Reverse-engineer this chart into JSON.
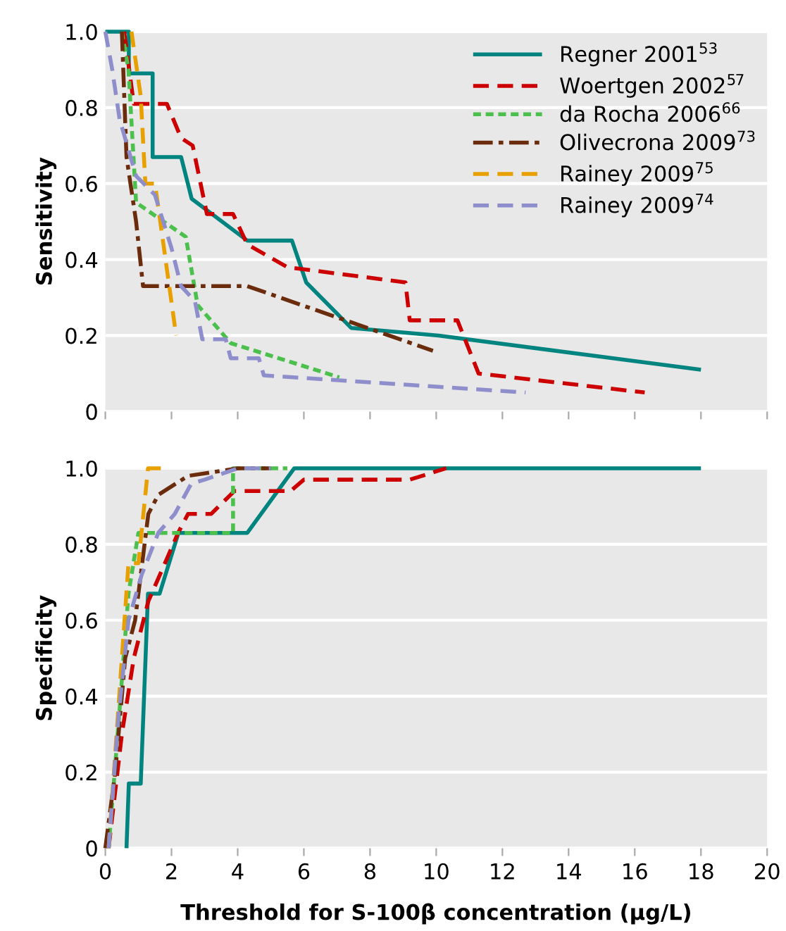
{
  "chart_data": [
    {
      "type": "line",
      "ylabel": "Sensitivity",
      "xlim": [
        0,
        20
      ],
      "ylim": [
        0,
        1.0
      ],
      "xticks": [
        {
          "value": 0,
          "label": null
        },
        {
          "value": 2,
          "label": null
        },
        {
          "value": 4,
          "label": null
        },
        {
          "value": 6,
          "label": null
        },
        {
          "value": 8,
          "label": null
        },
        {
          "value": 10,
          "label": null
        },
        {
          "value": 12,
          "label": null
        },
        {
          "value": 14,
          "label": null
        },
        {
          "value": 16,
          "label": null
        },
        {
          "value": 18,
          "label": null
        },
        {
          "value": 20,
          "label": null
        }
      ],
      "yticks": [
        0,
        0.2,
        0.4,
        0.6,
        0.8,
        {
          "value": 1.0,
          "label": "1.0"
        }
      ],
      "tick_labels": "y",
      "grid": "y",
      "legend": "top right",
      "series": [
        {
          "name": "Regner 2001$^{53}$",
          "color": "#00847f",
          "line_style": "solid",
          "x": [
            0,
            0.71,
            0.71,
            1.43,
            1.43,
            2.29,
            2.61,
            4.29,
            5.64,
            6.07,
            7.43,
            10.07,
            18.0
          ],
          "values": [
            1.0,
            1.0,
            0.89,
            0.89,
            0.67,
            0.67,
            0.56,
            0.45,
            0.45,
            0.34,
            0.22,
            0.2,
            0.11
          ]
        },
        {
          "name": "Woertgen 2002$^{57}$",
          "color": "#cc0000",
          "line_style": "dashed",
          "x": [
            0.57,
            0.86,
            1.86,
            2.29,
            2.64,
            3.07,
            3.86,
            4.29,
            5.5,
            9.07,
            9.2,
            10.64,
            11.28,
            16.3
          ],
          "values": [
            1.0,
            0.81,
            0.81,
            0.72,
            0.7,
            0.52,
            0.52,
            0.44,
            0.38,
            0.34,
            0.24,
            0.24,
            0.1,
            0.05
          ]
        },
        {
          "name": "da Rocha 2006$^{66}$",
          "color": "#4cc04c",
          "line_style": "dotted",
          "x": [
            0.5,
            0.7,
            0.93,
            2.43,
            2.79,
            3.79,
            7.07
          ],
          "values": [
            1.0,
            0.9,
            0.55,
            0.46,
            0.28,
            0.18,
            0.09
          ]
        },
        {
          "name": "Olivecrona 2009$^{73}$",
          "color": "#6b2c0d",
          "line_style": "dashdot",
          "x": [
            0.5,
            0.64,
            0.93,
            1.14,
            4.29,
            9.9
          ],
          "values": [
            1.0,
            0.67,
            0.5,
            0.33,
            0.33,
            0.16
          ]
        },
        {
          "name": "Rainey 2009$^{75}$",
          "color": "#e8a000",
          "line_style": "dashed",
          "x": [
            0.79,
            1.07,
            1.21,
            1.5,
            2.14
          ],
          "values": [
            1.0,
            0.83,
            0.6,
            0.6,
            0.2
          ]
        },
        {
          "name": "Rainey 2009$^{74}$",
          "color": "#8e8ecc",
          "line_style": "dashed",
          "x": [
            0,
            0.21,
            0.43,
            0.93,
            1.5,
            2.0,
            2.29,
            2.71,
            2.93,
            3.64,
            3.79,
            4.64,
            4.79,
            10.07,
            12.7
          ],
          "values": [
            1.0,
            0.9,
            0.77,
            0.62,
            0.57,
            0.43,
            0.33,
            0.29,
            0.19,
            0.19,
            0.14,
            0.14,
            0.095,
            0.065,
            0.05
          ]
        }
      ]
    },
    {
      "type": "line",
      "ylabel": "Specificity",
      "xlabel": "Threshold for S-100β concentration (μg/L)",
      "xlim": [
        0,
        20
      ],
      "ylim": [
        0,
        1.0
      ],
      "xticks": [
        0,
        2,
        4,
        6,
        8,
        10,
        12,
        14,
        16,
        18,
        20
      ],
      "yticks": [
        0,
        0.2,
        0.4,
        0.6,
        0.8,
        {
          "value": 1.0,
          "label": "1.0"
        }
      ],
      "grid": "y",
      "series": [
        {
          "color": "#00847f",
          "line_style": "solid",
          "x": [
            0.64,
            0.71,
            1.07,
            1.29,
            1.64,
            2.21,
            4.29,
            5.71,
            18.0
          ],
          "values": [
            0,
            0.17,
            0.17,
            0.67,
            0.67,
            0.83,
            0.83,
            1.0,
            1.0
          ]
        },
        {
          "color": "#cc0000",
          "line_style": "dashed",
          "x": [
            0.1,
            0.5,
            0.86,
            1.3,
            1.9,
            2.2,
            2.5,
            3.2,
            3.9,
            5.6,
            6.0,
            9.2,
            10.3
          ],
          "values": [
            0,
            0.3,
            0.5,
            0.65,
            0.77,
            0.83,
            0.88,
            0.88,
            0.94,
            0.94,
            0.97,
            0.97,
            1.0
          ]
        },
        {
          "color": "#4cc04c",
          "line_style": "dotted",
          "x": [
            0.1,
            0.4,
            0.7,
            1.0,
            1.3,
            3.86,
            3.86,
            5.5
          ],
          "values": [
            0,
            0.33,
            0.67,
            0.83,
            0.83,
            0.83,
            1.0,
            1.0
          ]
        },
        {
          "color": "#6b2c0d",
          "line_style": "dashdot",
          "x": [
            0.0,
            0.3,
            0.6,
            0.9,
            1.3,
            1.6,
            2.5,
            4.0,
            5.0
          ],
          "values": [
            0,
            0.2,
            0.5,
            0.6,
            0.88,
            0.93,
            0.98,
            1.0,
            1.0
          ]
        },
        {
          "color": "#e8a000",
          "line_style": "dashed",
          "x": [
            0.1,
            0.5,
            0.7,
            1.0,
            1.29,
            1.8
          ],
          "values": [
            0,
            0.5,
            0.75,
            0.75,
            1.0,
            1.0
          ]
        },
        {
          "color": "#8e8ecc",
          "line_style": "dashed",
          "x": [
            0.1,
            0.4,
            0.7,
            1.1,
            1.6,
            2.1,
            2.6,
            3.0,
            4.0,
            5.0
          ],
          "values": [
            0,
            0.35,
            0.6,
            0.72,
            0.83,
            0.88,
            0.96,
            0.97,
            1.0,
            1.0
          ]
        }
      ]
    }
  ]
}
